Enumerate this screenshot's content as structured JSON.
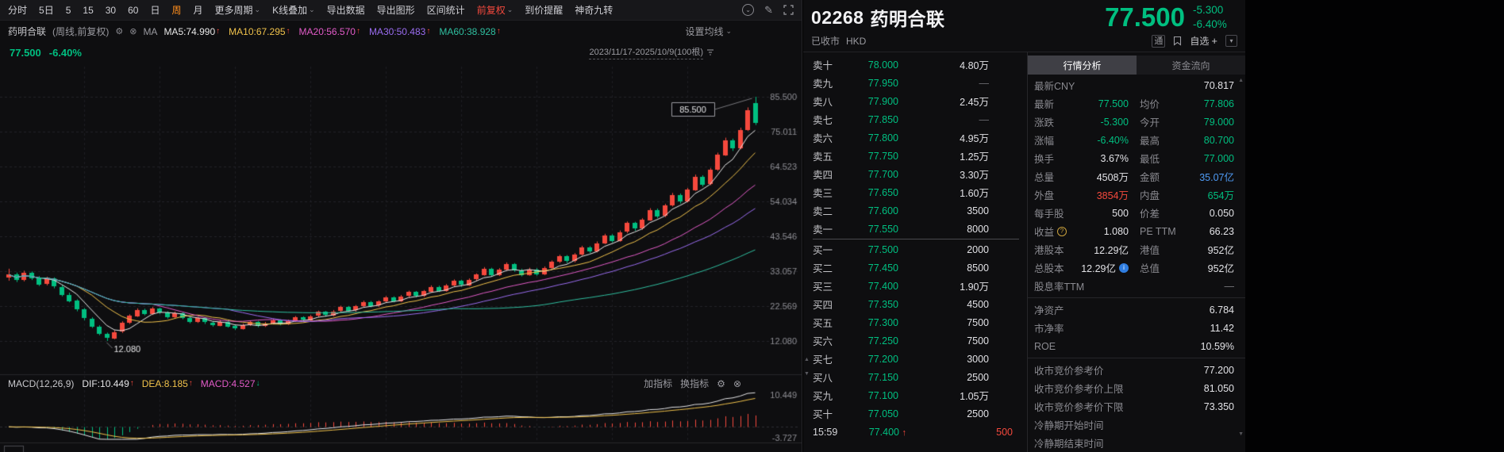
{
  "colors": {
    "red": "#f5493d",
    "green": "#00bf80",
    "orange": "#ff8e1c",
    "yellow": "#f0c24b",
    "magenta": "#e25bc8",
    "blue": "#4f9bf5",
    "white": "#e4e4e6",
    "grey": "#9a9aa0",
    "dim": "#6b6b70",
    "bg": "#0e0e10",
    "grid": "#222228",
    "grid_v": "#1d1d22",
    "axis_text": "#8d8d93",
    "divider": "#26262a",
    "ma": [
      "#e8e8e8",
      "#f0c24b",
      "#e25bc8",
      "#9a6cf0",
      "#2fbfa0"
    ]
  },
  "toolbar": {
    "items": [
      {
        "label": "分时"
      },
      {
        "label": "5日"
      },
      {
        "label": "5"
      },
      {
        "label": "15"
      },
      {
        "label": "30"
      },
      {
        "label": "60"
      },
      {
        "label": "日"
      },
      {
        "label": "周",
        "active": true
      },
      {
        "label": "月"
      },
      {
        "label": "更多周期",
        "caret": true
      },
      {
        "label": "K线叠加",
        "caret": true
      },
      {
        "label": "导出数据"
      },
      {
        "label": "导出图形"
      },
      {
        "label": "区间统计"
      },
      {
        "label": "前复权",
        "caret": true,
        "accent": true
      },
      {
        "label": "到价提醒"
      },
      {
        "label": "神奇九转"
      }
    ]
  },
  "chart": {
    "legend": {
      "name": "药明合联",
      "period": "(周线,前复权)",
      "ma_label": "MA",
      "ma_items": [
        {
          "text": "MA5:74.990",
          "arrow": "↑"
        },
        {
          "text": "MA10:67.295",
          "arrow": "↑"
        },
        {
          "text": "MA20:56.570",
          "arrow": "↑"
        },
        {
          "text": "MA30:50.483",
          "arrow": "↑"
        },
        {
          "text": "MA60:38.928",
          "arrow": "↑"
        }
      ],
      "settings_label": "设置均线"
    },
    "price_row": {
      "price": "77.500",
      "change_pct": "-6.40%",
      "date_range": "2023/11/17-2025/10/9(100根)"
    }
  },
  "macd": {
    "title": "MACD(12,26,9)",
    "dif": "DIF:10.449",
    "dif_arrow": "↑",
    "dea": "DEA:8.185",
    "dea_arrow": "↑",
    "macd": "MACD:4.527",
    "macd_arrow": "↓",
    "add_label": "加指标",
    "switch_label": "换指标"
  },
  "chart_data": {
    "type": "candlestick",
    "title": "药明合联 02268 周线 前复权",
    "x_range": "2023/11/17-2025/10/9",
    "bars": 100,
    "y_ticks": [
      85.5,
      75.011,
      64.523,
      54.034,
      43.546,
      33.057,
      22.569,
      12.08
    ],
    "ma_windows": [
      5,
      10,
      20,
      30,
      60
    ],
    "high_marker": 85.5,
    "low_marker": 12.08,
    "macd": {
      "params": [
        12,
        26,
        9
      ],
      "dif": 10.449,
      "dea": 8.185,
      "hist": 4.527,
      "y_ticks": [
        10.449,
        -3.727
      ]
    },
    "candles": [
      [
        31.0,
        33.8,
        30.2,
        32.0
      ],
      [
        32.0,
        32.6,
        29.8,
        30.4
      ],
      [
        30.4,
        33.2,
        30.0,
        32.6
      ],
      [
        32.6,
        33.0,
        30.4,
        31.0
      ],
      [
        31.0,
        31.6,
        28.6,
        29.2
      ],
      [
        29.2,
        31.4,
        28.8,
        30.8
      ],
      [
        30.8,
        31.2,
        27.9,
        28.4
      ],
      [
        28.4,
        28.9,
        25.5,
        26.0
      ],
      [
        26.0,
        26.6,
        23.7,
        24.2
      ],
      [
        24.2,
        24.6,
        21.0,
        21.5
      ],
      [
        21.5,
        22.0,
        18.3,
        18.8
      ],
      [
        18.8,
        19.2,
        16.0,
        16.4
      ],
      [
        16.4,
        16.8,
        13.8,
        14.2
      ],
      [
        14.2,
        14.6,
        12.08,
        12.9
      ],
      [
        12.9,
        15.3,
        12.6,
        14.8
      ],
      [
        14.8,
        18.0,
        14.5,
        17.5
      ],
      [
        17.5,
        20.1,
        17.2,
        19.6
      ],
      [
        19.6,
        21.9,
        19.3,
        21.4
      ],
      [
        21.4,
        21.8,
        19.8,
        20.2
      ],
      [
        20.2,
        22.3,
        19.9,
        21.8
      ],
      [
        21.8,
        22.1,
        20.2,
        20.6
      ],
      [
        20.6,
        21.0,
        18.8,
        19.2
      ],
      [
        19.2,
        20.9,
        18.9,
        20.4
      ],
      [
        20.4,
        20.7,
        18.6,
        19.0
      ],
      [
        19.0,
        19.3,
        17.4,
        17.8
      ],
      [
        17.8,
        19.3,
        17.5,
        18.9
      ],
      [
        18.9,
        19.2,
        17.2,
        17.6
      ],
      [
        17.6,
        18.0,
        16.4,
        16.8
      ],
      [
        16.8,
        18.3,
        16.5,
        17.9
      ],
      [
        17.9,
        18.2,
        16.1,
        16.5
      ],
      [
        16.5,
        16.9,
        15.4,
        15.8
      ],
      [
        15.8,
        17.3,
        15.5,
        16.9
      ],
      [
        16.9,
        18.2,
        16.6,
        17.8
      ],
      [
        17.8,
        18.1,
        16.2,
        16.6
      ],
      [
        16.6,
        17.8,
        16.3,
        17.4
      ],
      [
        17.4,
        18.7,
        17.1,
        18.3
      ],
      [
        18.3,
        18.6,
        16.8,
        17.2
      ],
      [
        17.2,
        18.5,
        16.9,
        18.1
      ],
      [
        18.1,
        19.6,
        17.8,
        19.2
      ],
      [
        19.2,
        19.5,
        18.0,
        18.4
      ],
      [
        18.4,
        19.9,
        18.1,
        19.5
      ],
      [
        19.5,
        21.2,
        19.2,
        20.8
      ],
      [
        20.8,
        21.1,
        19.4,
        19.8
      ],
      [
        19.8,
        21.4,
        19.5,
        21.0
      ],
      [
        21.0,
        22.7,
        20.7,
        22.3
      ],
      [
        22.3,
        22.6,
        20.8,
        21.2
      ],
      [
        21.2,
        22.9,
        20.9,
        22.5
      ],
      [
        22.5,
        24.2,
        22.2,
        23.8
      ],
      [
        23.8,
        24.1,
        22.2,
        22.6
      ],
      [
        22.6,
        24.3,
        22.3,
        23.9
      ],
      [
        23.9,
        25.6,
        23.6,
        25.2
      ],
      [
        25.2,
        25.5,
        23.7,
        24.1
      ],
      [
        24.1,
        25.9,
        23.8,
        25.5
      ],
      [
        25.5,
        27.2,
        25.2,
        26.8
      ],
      [
        26.8,
        27.1,
        25.2,
        25.6
      ],
      [
        25.6,
        27.4,
        25.3,
        27.0
      ],
      [
        27.0,
        28.8,
        26.7,
        28.4
      ],
      [
        28.4,
        28.7,
        26.8,
        27.2
      ],
      [
        27.2,
        29.2,
        26.9,
        28.8
      ],
      [
        28.8,
        30.6,
        28.5,
        30.2
      ],
      [
        30.2,
        30.5,
        28.4,
        28.9
      ],
      [
        28.9,
        30.9,
        28.6,
        30.5
      ],
      [
        30.5,
        32.4,
        30.2,
        32.0
      ],
      [
        32.0,
        34.3,
        31.7,
        33.8
      ],
      [
        33.8,
        34.1,
        31.4,
        31.9
      ],
      [
        31.9,
        34.0,
        31.6,
        33.5
      ],
      [
        33.5,
        35.7,
        33.2,
        35.2
      ],
      [
        35.2,
        35.5,
        32.9,
        33.4
      ],
      [
        33.4,
        33.8,
        31.5,
        32.0
      ],
      [
        32.0,
        34.1,
        31.7,
        33.6
      ],
      [
        33.6,
        34.0,
        31.7,
        32.2
      ],
      [
        32.2,
        34.5,
        31.9,
        34.0
      ],
      [
        34.0,
        36.3,
        33.7,
        35.8
      ],
      [
        35.8,
        38.0,
        35.5,
        37.5
      ],
      [
        37.5,
        37.9,
        35.5,
        36.0
      ],
      [
        36.0,
        38.5,
        35.7,
        38.0
      ],
      [
        38.0,
        40.7,
        37.7,
        40.2
      ],
      [
        40.2,
        40.6,
        38.5,
        39.0
      ],
      [
        39.0,
        42.0,
        38.7,
        41.5
      ],
      [
        41.5,
        44.3,
        41.2,
        43.8
      ],
      [
        43.8,
        44.2,
        41.7,
        42.2
      ],
      [
        42.2,
        45.3,
        41.9,
        44.8
      ],
      [
        44.8,
        48.0,
        44.5,
        47.5
      ],
      [
        47.5,
        47.9,
        45.2,
        45.8
      ],
      [
        45.8,
        49.0,
        45.5,
        48.5
      ],
      [
        48.5,
        52.0,
        48.2,
        51.5
      ],
      [
        51.5,
        51.9,
        49.0,
        49.6
      ],
      [
        49.6,
        53.3,
        49.3,
        52.8
      ],
      [
        52.8,
        56.6,
        52.5,
        56.0
      ],
      [
        56.0,
        56.4,
        53.4,
        54.0
      ],
      [
        54.0,
        58.1,
        53.7,
        57.5
      ],
      [
        57.5,
        62.1,
        57.2,
        61.5
      ],
      [
        61.5,
        61.9,
        58.5,
        59.2
      ],
      [
        59.2,
        64.1,
        58.9,
        63.5
      ],
      [
        63.5,
        68.7,
        63.2,
        68.0
      ],
      [
        68.0,
        73.2,
        67.7,
        72.5
      ],
      [
        72.5,
        72.9,
        69.2,
        70.0
      ],
      [
        70.0,
        76.2,
        69.7,
        75.5
      ],
      [
        75.5,
        82.3,
        75.2,
        81.5
      ],
      [
        83.5,
        85.5,
        77.0,
        77.5
      ]
    ]
  },
  "orderbook": {
    "asks": [
      {
        "label": "卖十",
        "price": "78.000",
        "vol": "4.80万"
      },
      {
        "label": "卖九",
        "price": "77.950",
        "vol": "—"
      },
      {
        "label": "卖八",
        "price": "77.900",
        "vol": "2.45万"
      },
      {
        "label": "卖七",
        "price": "77.850",
        "vol": "—"
      },
      {
        "label": "卖六",
        "price": "77.800",
        "vol": "4.95万"
      },
      {
        "label": "卖五",
        "price": "77.750",
        "vol": "1.25万"
      },
      {
        "label": "卖四",
        "price": "77.700",
        "vol": "3.30万"
      },
      {
        "label": "卖三",
        "price": "77.650",
        "vol": "1.60万"
      },
      {
        "label": "卖二",
        "price": "77.600",
        "vol": "3500"
      },
      {
        "label": "卖一",
        "price": "77.550",
        "vol": "8000"
      }
    ],
    "bids": [
      {
        "label": "买一",
        "price": "77.500",
        "vol": "2000"
      },
      {
        "label": "买二",
        "price": "77.450",
        "vol": "8500"
      },
      {
        "label": "买三",
        "price": "77.400",
        "vol": "1.90万"
      },
      {
        "label": "买四",
        "price": "77.350",
        "vol": "4500"
      },
      {
        "label": "买五",
        "price": "77.300",
        "vol": "7500"
      },
      {
        "label": "买六",
        "price": "77.250",
        "vol": "7500"
      },
      {
        "label": "买七",
        "price": "77.200",
        "vol": "3000"
      },
      {
        "label": "买八",
        "price": "77.150",
        "vol": "2500"
      },
      {
        "label": "买九",
        "price": "77.100",
        "vol": "1.05万"
      },
      {
        "label": "买十",
        "price": "77.050",
        "vol": "2500"
      }
    ],
    "last_trade": {
      "time": "15:59",
      "price": "77.400",
      "arrow": "↑",
      "vol": "500"
    }
  },
  "quote": {
    "code": "02268",
    "name": "药明合联",
    "price": "77.500",
    "change": "-5.300",
    "change_pct": "-6.40%",
    "status": "已收市",
    "currency": "HKD",
    "badge": "通",
    "watchlist": "自选",
    "plus": "+",
    "tabs": [
      "行情分析",
      "资金流向"
    ],
    "stats": {
      "rows": [
        {
          "cells": [
            {
              "label": "最新CNY",
              "value": "70.817",
              "cls": "white"
            }
          ]
        },
        {
          "cells": [
            {
              "label": "最新",
              "value": "77.500",
              "cls": "green"
            },
            {
              "label": "均价",
              "value": "77.806",
              "cls": "green"
            }
          ]
        },
        {
          "cells": [
            {
              "label": "涨跌",
              "value": "-5.300",
              "cls": "green"
            },
            {
              "label": "今开",
              "value": "79.000",
              "cls": "green"
            }
          ]
        },
        {
          "cells": [
            {
              "label": "涨幅",
              "value": "-6.40%",
              "cls": "green"
            },
            {
              "label": "最高",
              "value": "80.700",
              "cls": "green"
            }
          ]
        },
        {
          "cells": [
            {
              "label": "换手",
              "value": "3.67%",
              "cls": "white"
            },
            {
              "label": "最低",
              "value": "77.000",
              "cls": "green"
            }
          ]
        },
        {
          "cells": [
            {
              "label": "总量",
              "value": "4508万",
              "cls": "white"
            },
            {
              "label": "金额",
              "value": "35.07亿",
              "cls": "blue"
            }
          ]
        },
        {
          "cells": [
            {
              "label": "外盘",
              "value": "3854万",
              "cls": "red"
            },
            {
              "label": "内盘",
              "value": "654万",
              "cls": "green"
            }
          ]
        },
        {
          "cells": [
            {
              "label": "每手股",
              "value": "500",
              "cls": "white"
            },
            {
              "label": "价差",
              "value": "0.050",
              "cls": "white"
            }
          ]
        },
        {
          "cells": [
            {
              "label": "收益",
              "icon": "help",
              "value": "1.080",
              "cls": "white"
            },
            {
              "label": "PE TTM",
              "value": "66.23",
              "cls": "white"
            }
          ]
        },
        {
          "cells": [
            {
              "label": "港股本",
              "value": "12.29亿",
              "cls": "white"
            },
            {
              "label": "港值",
              "value": "952亿",
              "cls": "white"
            }
          ]
        },
        {
          "cells": [
            {
              "label": "总股本",
              "value": "12.29亿",
              "cls": "white",
              "icon_after": "info"
            },
            {
              "label": "总值",
              "value": "952亿",
              "cls": "white"
            }
          ]
        },
        {
          "cells": [
            {
              "label": "股息率TTM",
              "value": "—",
              "cls": "grey"
            }
          ]
        },
        {
          "divider": true
        },
        {
          "cells": [
            {
              "label": "净资产",
              "value": "6.784",
              "cls": "white"
            }
          ]
        },
        {
          "cells": [
            {
              "label": "市净率",
              "value": "11.42",
              "cls": "white"
            }
          ]
        },
        {
          "cells": [
            {
              "label": "ROE",
              "value": "10.59%",
              "cls": "white"
            }
          ]
        },
        {
          "divider": true
        },
        {
          "cells": [
            {
              "label": "收市竞价参考价",
              "value": "77.200",
              "cls": "white"
            }
          ]
        },
        {
          "cells": [
            {
              "label": "收市竞价参考价上限",
              "value": "81.050",
              "cls": "white"
            }
          ]
        },
        {
          "cells": [
            {
              "label": "收市竞价参考价下限",
              "value": "73.350",
              "cls": "white"
            }
          ]
        },
        {
          "cells": [
            {
              "label": "冷静期开始时间",
              "value": "",
              "cls": "white"
            }
          ]
        },
        {
          "cells": [
            {
              "label": "冷静期结束时间",
              "value": "",
              "cls": "white"
            }
          ]
        }
      ]
    }
  }
}
